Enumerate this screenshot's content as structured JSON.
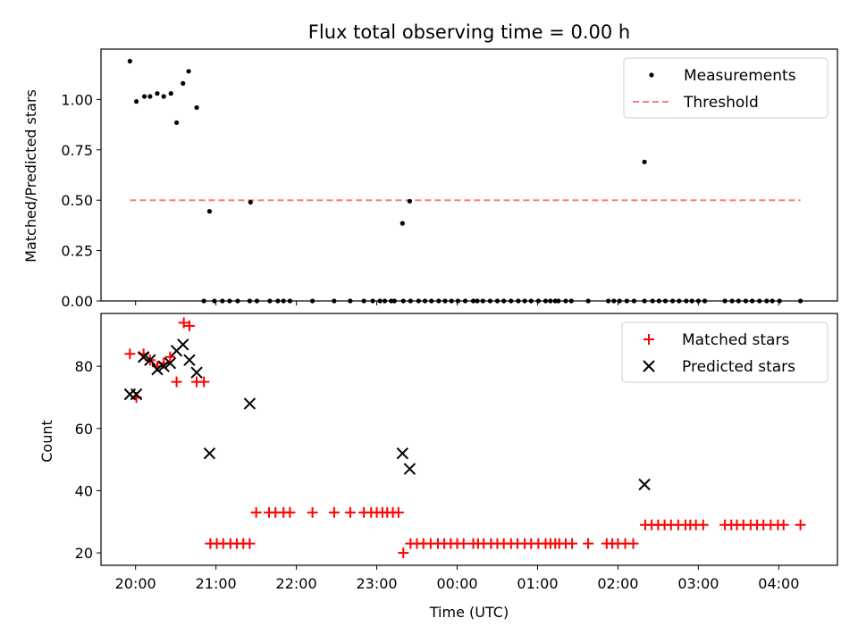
{
  "chart_data": [
    {
      "type": "scatter",
      "title": "Flux total observing time = 0.00 h",
      "xlabel": "",
      "ylabel": "Matched/Predicted stars",
      "ylim": [
        0,
        1.25
      ],
      "yticks": [
        0.0,
        0.25,
        0.5,
        0.75,
        1.0
      ],
      "ytick_labels": [
        "0.00",
        "0.25",
        "0.50",
        "0.75",
        "1.00"
      ],
      "xlim_hours": [
        19.57,
        28.73
      ],
      "legend": {
        "placement": "top-right",
        "entries": [
          "Measurements",
          "Threshold"
        ]
      },
      "series": [
        {
          "name": "Measurements",
          "kind": "points",
          "color": "#000000",
          "x_hours": [
            19.93,
            20.01,
            20.11,
            20.18,
            20.27,
            20.35,
            20.44,
            20.51,
            20.59,
            20.66,
            20.76,
            20.92,
            21.43,
            23.32,
            23.41,
            26.33
          ],
          "y": [
            1.19,
            0.99,
            1.015,
            1.015,
            1.03,
            1.015,
            1.03,
            0.885,
            1.08,
            1.14,
            0.96,
            0.445,
            0.49,
            0.385,
            0.495,
            0.69
          ]
        },
        {
          "name": "Measurements",
          "kind": "zero-points",
          "color": "#000000",
          "x_hours": [
            20.85,
            20.98,
            21.08,
            21.17,
            21.27,
            21.42,
            21.51,
            21.67,
            21.77,
            21.84,
            21.92,
            22.2,
            22.47,
            22.67,
            22.84,
            22.95,
            23.04,
            23.1,
            23.18,
            23.22,
            23.33,
            23.42,
            23.52,
            23.6,
            23.68,
            23.77,
            23.85,
            23.93,
            24.01,
            24.1,
            24.2,
            24.25,
            24.32,
            24.41,
            24.5,
            24.58,
            24.67,
            24.76,
            24.84,
            24.92,
            25.01,
            25.1,
            25.16,
            25.22,
            25.26,
            25.35,
            25.42,
            25.63,
            25.88,
            25.95,
            26.02,
            26.11,
            26.2,
            26.33,
            26.43,
            26.51,
            26.59,
            26.68,
            26.76,
            26.85,
            26.92,
            27.0,
            27.08,
            27.33,
            27.42,
            27.5,
            27.59,
            27.67,
            27.76,
            27.85,
            27.92,
            28.01,
            28.27
          ],
          "y_value": 0
        },
        {
          "name": "Threshold",
          "kind": "dashed-line",
          "color": "#ff7b7b",
          "x_hours": [
            19.93,
            28.27
          ],
          "y": [
            0.5,
            0.5
          ]
        }
      ]
    },
    {
      "type": "scatter",
      "title": "",
      "xlabel": "Time (UTC)",
      "ylabel": "Count",
      "ylim": [
        16,
        97
      ],
      "yticks": [
        20,
        40,
        60,
        80
      ],
      "ytick_labels": [
        "20",
        "40",
        "60",
        "80"
      ],
      "xlim_hours": [
        19.57,
        28.73
      ],
      "xticks_hours": [
        20,
        21,
        22,
        23,
        24,
        25,
        26,
        27,
        28
      ],
      "xtick_labels": [
        "20:00",
        "21:00",
        "22:00",
        "23:00",
        "00:00",
        "01:00",
        "02:00",
        "03:00",
        "04:00"
      ],
      "legend": {
        "placement": "top-right",
        "entries": [
          "Matched stars",
          "Predicted stars"
        ]
      },
      "series": [
        {
          "name": "Matched stars",
          "marker": "+",
          "color": "#ff0000",
          "x_hours": [
            19.93,
            20.01,
            20.1,
            20.18,
            20.27,
            20.35,
            20.43,
            20.51,
            20.6,
            20.67,
            20.76,
            20.85,
            20.93,
            21.01,
            21.09,
            21.18,
            21.26,
            21.34,
            21.42,
            21.5,
            21.66,
            21.74,
            21.84,
            21.92,
            22.2,
            22.47,
            22.67,
            22.84,
            22.93,
            23.0,
            23.07,
            23.13,
            23.2,
            23.27,
            23.33,
            23.42,
            23.5,
            23.58,
            23.67,
            23.76,
            23.84,
            23.92,
            24.0,
            24.08,
            24.2,
            24.26,
            24.33,
            24.42,
            24.5,
            24.58,
            24.67,
            24.75,
            24.84,
            24.92,
            25.01,
            25.1,
            25.16,
            25.22,
            25.27,
            25.35,
            25.43,
            25.63,
            25.86,
            25.93,
            26.0,
            26.09,
            26.19,
            26.34,
            26.42,
            26.5,
            26.58,
            26.66,
            26.75,
            26.84,
            26.9,
            26.97,
            27.06,
            27.33,
            27.41,
            27.48,
            27.56,
            27.65,
            27.73,
            27.81,
            27.9,
            27.99,
            28.06,
            28.27
          ],
          "y": [
            84,
            70,
            84,
            82,
            80,
            81,
            83,
            75,
            94,
            93,
            75,
            75,
            23,
            23,
            23,
            23,
            23,
            23,
            23,
            33,
            33,
            33,
            33,
            33,
            33,
            33,
            33,
            33,
            33,
            33,
            33,
            33,
            33,
            33,
            20,
            23,
            23,
            23,
            23,
            23,
            23,
            23,
            23,
            23,
            23,
            23,
            23,
            23,
            23,
            23,
            23,
            23,
            23,
            23,
            23,
            23,
            23,
            23,
            23,
            23,
            23,
            23,
            23,
            23,
            23,
            23,
            23,
            29,
            29,
            29,
            29,
            29,
            29,
            29,
            29,
            29,
            29,
            29,
            29,
            29,
            29,
            29,
            29,
            29,
            29,
            29,
            29,
            29
          ]
        },
        {
          "name": "Predicted stars",
          "marker": "x",
          "color": "#000000",
          "x_hours": [
            19.93,
            20.01,
            20.1,
            20.18,
            20.27,
            20.35,
            20.43,
            20.51,
            20.59,
            20.67,
            20.76,
            20.92,
            21.42,
            23.32,
            23.41,
            26.33
          ],
          "y": [
            71,
            71,
            83,
            82,
            79,
            80,
            81,
            85,
            87,
            82,
            78,
            52,
            68,
            52,
            47,
            42
          ]
        }
      ]
    }
  ]
}
